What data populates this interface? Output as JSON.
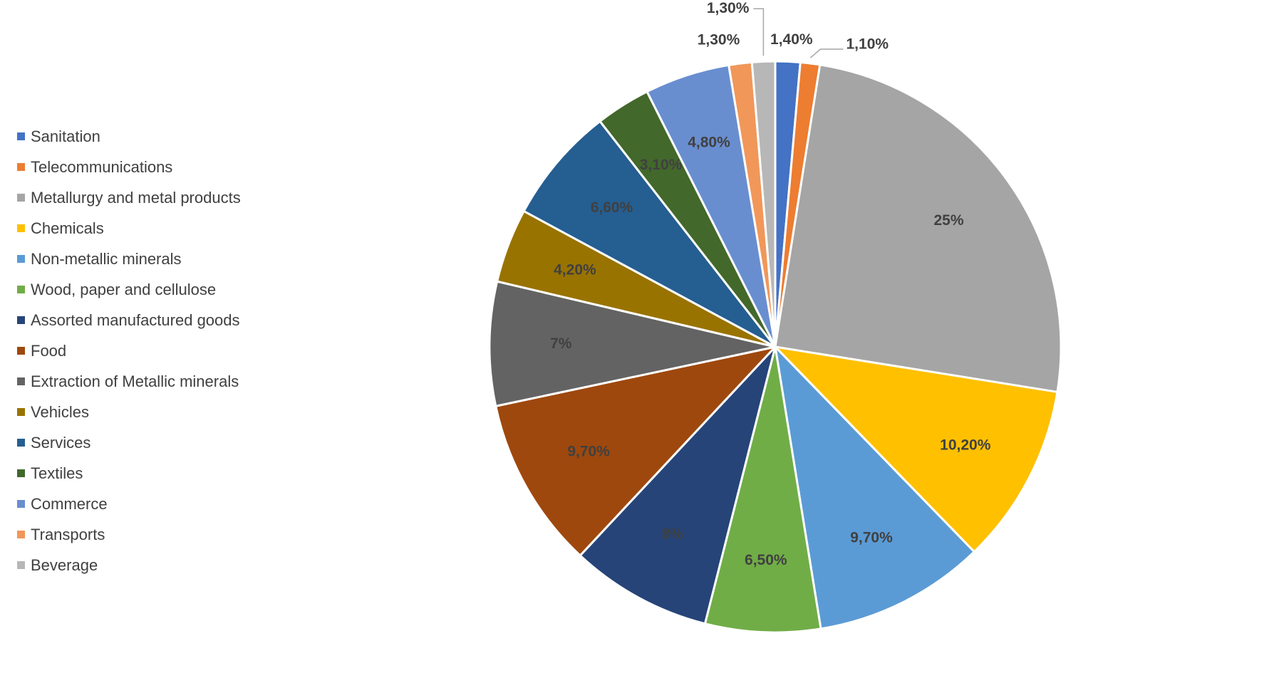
{
  "chart_data": {
    "type": "pie",
    "title": "",
    "legend_position": "left",
    "slices": [
      {
        "name": "Sanitation",
        "value": 1.4,
        "label": "1,40%",
        "color": "#4472C4"
      },
      {
        "name": "Telecommunications",
        "value": 1.1,
        "label": "1,10%",
        "color": "#ED7D31"
      },
      {
        "name": "Metallurgy and metal products",
        "value": 25,
        "label": "25%",
        "color": "#A5A5A5"
      },
      {
        "name": "Chemicals",
        "value": 10.2,
        "label": "10,20%",
        "color": "#FFC000"
      },
      {
        "name": "Non-metallic minerals",
        "value": 9.7,
        "label": "9,70%",
        "color": "#5B9BD5"
      },
      {
        "name": "Wood, paper and cellulose",
        "value": 6.5,
        "label": "6,50%",
        "color": "#70AD47"
      },
      {
        "name": "Assorted manufactured goods",
        "value": 8,
        "label": "8%",
        "color": "#264478"
      },
      {
        "name": "Food",
        "value": 9.7,
        "label": "9,70%",
        "color": "#9E480E"
      },
      {
        "name": "Extraction of Metallic minerals",
        "value": 7,
        "label": "7%",
        "color": "#636363"
      },
      {
        "name": "Vehicles",
        "value": 4.2,
        "label": "4,20%",
        "color": "#997300"
      },
      {
        "name": "Services",
        "value": 6.6,
        "label": "6,60%",
        "color": "#255E91"
      },
      {
        "name": "Textiles",
        "value": 3.1,
        "label": "3,10%",
        "color": "#43682B"
      },
      {
        "name": "Commerce",
        "value": 4.8,
        "label": "4,80%",
        "color": "#698ED0"
      },
      {
        "name": "Transports",
        "value": 1.3,
        "label": "1,30%",
        "color": "#F1975A"
      },
      {
        "name": "Beverage",
        "value": 1.3,
        "label": "1,30%",
        "color": "#B7B7B7"
      }
    ]
  }
}
